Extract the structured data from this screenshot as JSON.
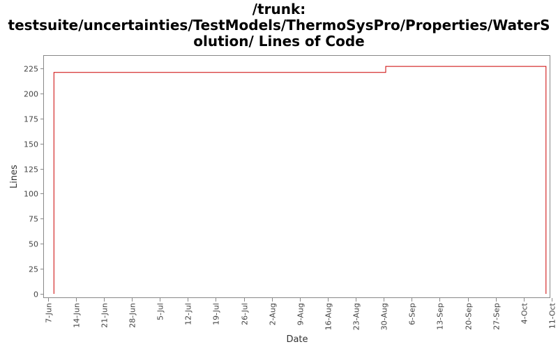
{
  "chart_data": {
    "type": "line",
    "title_lines": [
      "/trunk:",
      "testsuite/uncertainties/TestModels/ThermoSysPro/Properties/WaterS",
      "olution/ Lines of Code"
    ],
    "xlabel": "Date",
    "ylabel": "Lines",
    "ylim": [
      0,
      230
    ],
    "yticks": [
      0,
      25,
      50,
      75,
      100,
      125,
      150,
      175,
      200,
      225
    ],
    "x_ticks": [
      "7-Jun",
      "14-Jun",
      "21-Jun",
      "28-Jun",
      "5-Jul",
      "12-Jul",
      "19-Jul",
      "26-Jul",
      "2-Aug",
      "9-Aug",
      "16-Aug",
      "23-Aug",
      "30-Aug",
      "6-Sep",
      "13-Sep",
      "20-Sep",
      "27-Sep",
      "4-Oct",
      "11-Oct"
    ],
    "x_range_days": [
      -1.0,
      125.5
    ],
    "grid": false,
    "legend": "none",
    "line_color": "#cc0000",
    "series": [
      {
        "step": true,
        "points": [
          {
            "day": 1.5,
            "value": 0
          },
          {
            "day": 1.5,
            "value": 221
          },
          {
            "day": 84.5,
            "value": 221
          },
          {
            "day": 84.5,
            "value": 227
          },
          {
            "day": 124.6,
            "value": 227
          },
          {
            "day": 124.6,
            "value": 0
          }
        ]
      }
    ]
  }
}
